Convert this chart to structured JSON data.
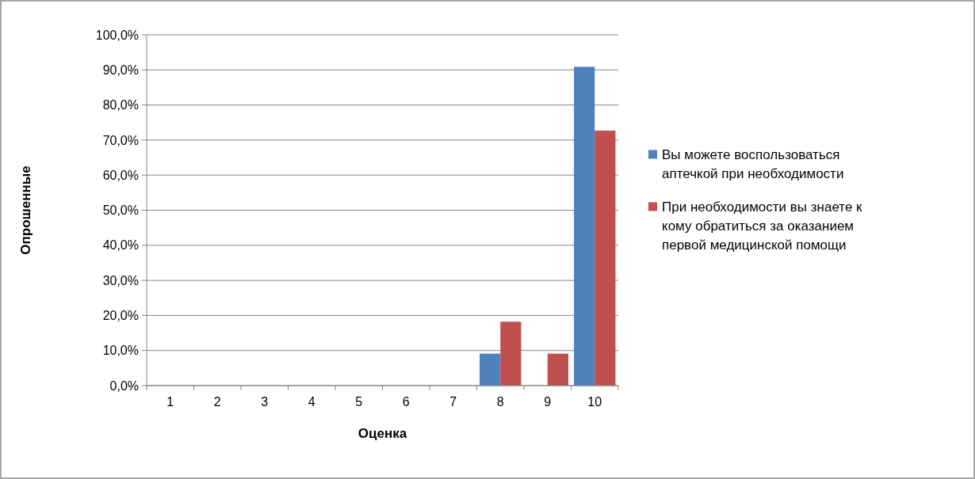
{
  "chart_data": {
    "type": "bar",
    "xlabel": "Оценка",
    "ylabel": "Опрошенные",
    "categories": [
      "1",
      "2",
      "3",
      "4",
      "5",
      "6",
      "7",
      "8",
      "9",
      "10"
    ],
    "series": [
      {
        "name": "Вы можете воспользоваться аптечкой при необходимости",
        "color": "#4f81bd",
        "values": [
          0,
          0,
          0,
          0,
          0,
          0,
          0,
          9.1,
          0,
          90.9
        ]
      },
      {
        "name": "При необходимости вы знаете к кому обратиться за оказанием первой медицинской помощи",
        "color": "#c0504d",
        "values": [
          0,
          0,
          0,
          0,
          0,
          0,
          0,
          18.2,
          9.1,
          72.7
        ]
      }
    ],
    "ylim": [
      0,
      100
    ],
    "yticks": [
      {
        "value": 0,
        "label": "0,0%"
      },
      {
        "value": 10,
        "label": "10,0%"
      },
      {
        "value": 20,
        "label": "20,0%"
      },
      {
        "value": 30,
        "label": "30,0%"
      },
      {
        "value": 40,
        "label": "40,0%"
      },
      {
        "value": 50,
        "label": "50,0%"
      },
      {
        "value": 60,
        "label": "60,0%"
      },
      {
        "value": 70,
        "label": "70,0%"
      },
      {
        "value": 80,
        "label": "80,0%"
      },
      {
        "value": 90,
        "label": "90,0%"
      },
      {
        "value": 100,
        "label": "100,0%"
      }
    ],
    "grid": "y",
    "legend": "right"
  }
}
